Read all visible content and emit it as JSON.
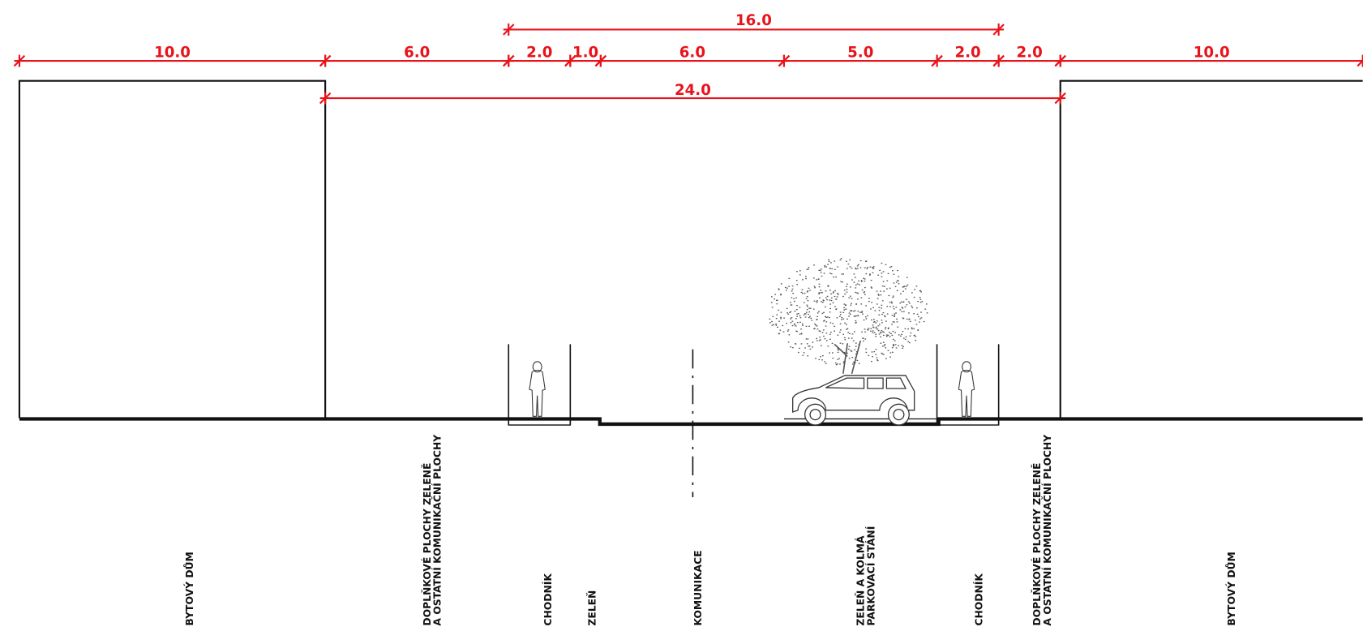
{
  "dimensions": {
    "overall": "16.0",
    "segments": [
      "10.0",
      "6.0",
      "2.0",
      "1.0",
      "6.0",
      "5.0",
      "2.0",
      "2.0",
      "10.0"
    ],
    "total": "24.0"
  },
  "zones": [
    {
      "lines": [
        "BYTOVÝ DŮM"
      ]
    },
    {
      "lines": [
        "DOPLŇKOVÉ PLOCHY ZELENĚ",
        "A OSTATNÍ KOMUNIKAČNÍ PLOCHY"
      ]
    },
    {
      "lines": [
        "CHODNÍK"
      ]
    },
    {
      "lines": [
        "ZELEŇ"
      ]
    },
    {
      "lines": [
        "KOMUNIKACE"
      ]
    },
    {
      "lines": [
        "ZELEŇ A KOLMÁ",
        "PARKOVACÍ STÁNÍ"
      ]
    },
    {
      "lines": [
        "CHODNÍK"
      ]
    },
    {
      "lines": [
        "DOPLŇKOVÉ PLOCHY ZELENĚ",
        "A OSTATNÍ KOMUNIKAČNÍ PLOCHY"
      ]
    },
    {
      "lines": [
        "BYTOVÝ DŮM"
      ]
    }
  ]
}
